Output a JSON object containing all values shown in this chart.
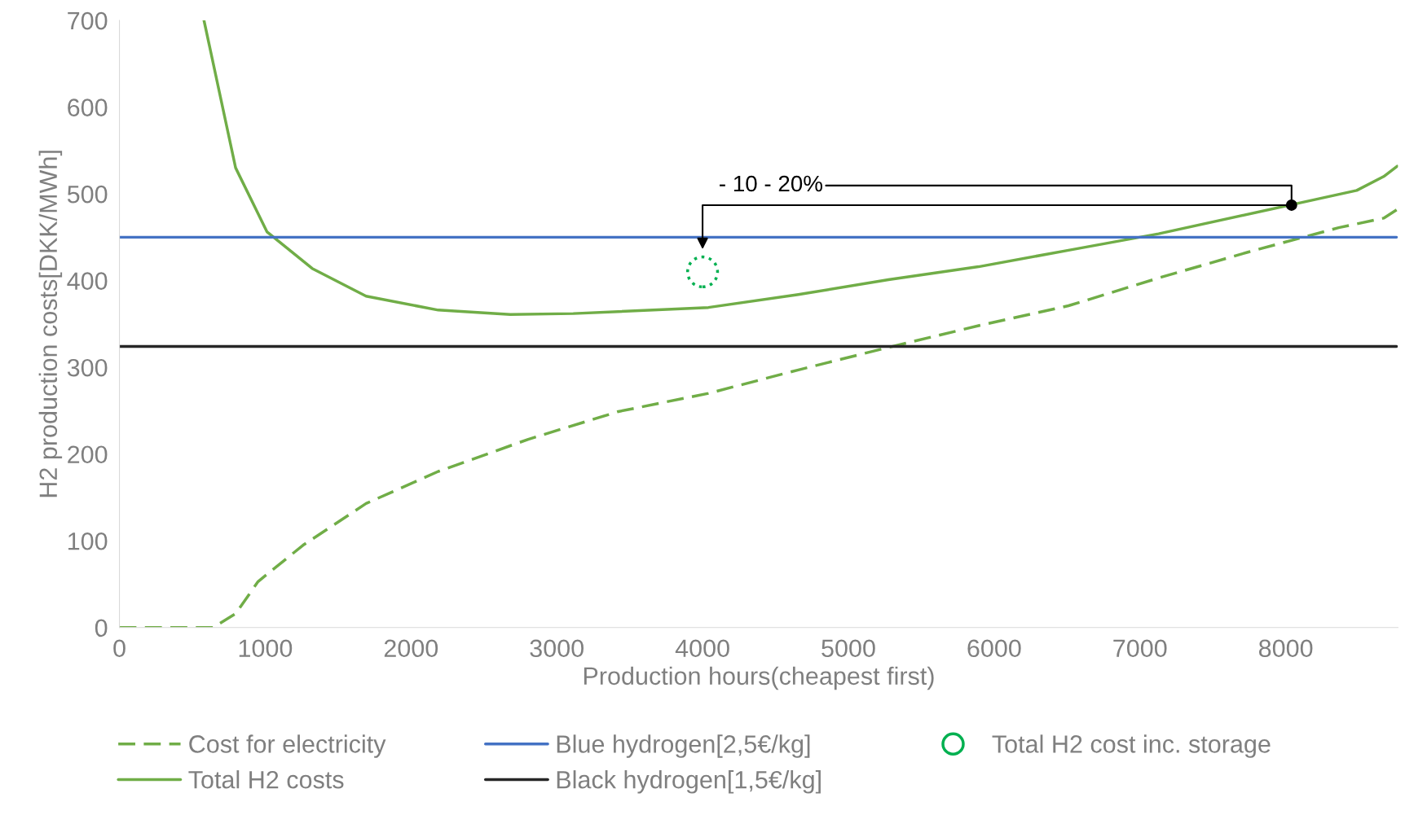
{
  "chart_data": {
    "type": "line",
    "xlabel": "Production hours(cheapest first)",
    "ylabel": "H2 production costs[DKK/MWh]",
    "xlim": [
      0,
      8770
    ],
    "ylim": [
      0,
      700
    ],
    "xticks": [
      0,
      1000,
      2000,
      3000,
      4000,
      5000,
      6000,
      7000,
      8000
    ],
    "yticks": [
      0,
      100,
      200,
      300,
      400,
      500,
      600,
      700
    ],
    "grid": false,
    "legend": "bottom",
    "marker": "none",
    "series": [
      {
        "name": "Cost for electricity",
        "color": "#70ad47",
        "line_style": "dashed",
        "x": [
          0,
          642,
          797,
          951,
          1260,
          1692,
          2187,
          2804,
          3422,
          4040,
          4657,
          5275,
          5893,
          6510,
          7128,
          7745,
          8363,
          8672,
          8765
        ],
        "values": [
          0,
          0,
          16,
          53,
          95,
          143,
          180,
          217,
          249,
          270,
          297,
          323,
          348,
          371,
          403,
          433,
          461,
          472,
          482
        ]
      },
      {
        "name": "Total H2 costs",
        "color": "#70ad47",
        "line_style": "solid",
        "x": [
          580,
          797,
          1013,
          1322,
          1692,
          2187,
          2681,
          3113,
          4040,
          4657,
          5275,
          5893,
          6510,
          7128,
          8054,
          8487,
          8672,
          8765
        ],
        "values": [
          700,
          530,
          456,
          414,
          382,
          366,
          361,
          362,
          369,
          384,
          401,
          416,
          435,
          454,
          488,
          504,
          520,
          532
        ]
      },
      {
        "name": "Blue hydrogen[2,5€/kg]",
        "color": "#4472c4",
        "line_style": "solid",
        "x": [
          0,
          8760
        ],
        "values": [
          450,
          450
        ]
      },
      {
        "name": "Black hydrogen[1,5€/kg]",
        "color": "#262626",
        "line_style": "solid",
        "x": [
          0,
          8760
        ],
        "values": [
          324,
          324
        ]
      },
      {
        "name": "Total H2 cost inc. storage",
        "type": "scatter",
        "color": "#00b050",
        "marker": "circle",
        "x": [
          4000
        ],
        "values": [
          410
        ]
      }
    ],
    "annotations": [
      {
        "text": "- 10 - 20%",
        "x": 8040,
        "y": 487
      }
    ]
  }
}
